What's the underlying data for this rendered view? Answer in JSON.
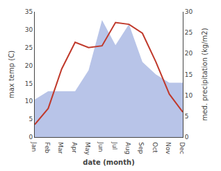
{
  "chart_data": {
    "type": "line",
    "xlabel": "date (month)",
    "ylabel": "max temp (C)",
    "y2label": "med. precipitation (kg/m2)",
    "categories": [
      "Jan",
      "Feb",
      "Mar",
      "Apr",
      "May",
      "Jun",
      "Jul",
      "Aug",
      "Sep",
      "Oct",
      "Nov",
      "Dec"
    ],
    "series": [
      {
        "type": "area",
        "axis": "y2",
        "color": "#b8c4e8",
        "values": [
          9.0,
          11.0,
          11.0,
          11.0,
          16.0,
          28.0,
          22.0,
          27.0,
          18.0,
          15.0,
          13.0,
          13.0
        ]
      },
      {
        "type": "line",
        "color": "#c0392b",
        "values": [
          3.5,
          8.0,
          19.0,
          26.5,
          25.0,
          25.5,
          32.0,
          31.5,
          29.0,
          21.0,
          12.0,
          7.0
        ]
      }
    ],
    "ylim": [
      0,
      35
    ],
    "yticks": [
      0,
      5,
      10,
      15,
      20,
      25,
      30,
      35
    ],
    "y2lim": [
      0,
      30
    ],
    "y2ticks": [
      0,
      5,
      10,
      15,
      20,
      25,
      30
    ],
    "grid": false
  }
}
